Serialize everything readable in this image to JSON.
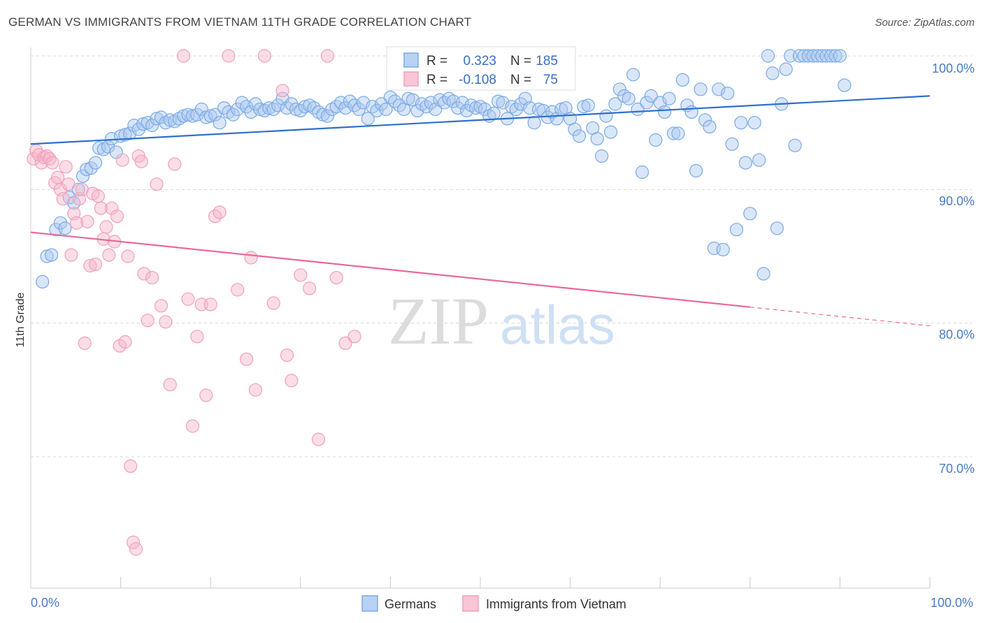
{
  "title": "GERMAN VS IMMIGRANTS FROM VIETNAM 11TH GRADE CORRELATION CHART",
  "source": "Source: ZipAtlas.com",
  "watermark": {
    "zip": "ZIP",
    "atlas": "atlas"
  },
  "legend_box": {
    "r_label": "R =",
    "n_label": "N =",
    "rows": [
      {
        "r": "0.323",
        "n": "185",
        "color": "#7aaae8"
      },
      {
        "r": "-0.108",
        "n": "75",
        "color": "#f2a0b8"
      }
    ]
  },
  "chart_data": {
    "type": "scatter",
    "ylabel": "11th Grade",
    "xlim": [
      0,
      100
    ],
    "ylim": [
      60.5,
      101.5
    ],
    "x_tick_labels": [
      "0.0%",
      "100.0%"
    ],
    "y_ticks": [
      70,
      80,
      90,
      100
    ],
    "y_tick_labels": [
      "70.0%",
      "80.0%",
      "90.0%",
      "100.0%"
    ],
    "grid": "horizontal-dashed",
    "legend_placement": "bottom-center",
    "series": [
      {
        "name": "Germans",
        "color": "#7aaae8",
        "line_color": "#2f6fcc",
        "trend": {
          "x": [
            0,
            100
          ],
          "y": [
            93.4,
            97.0
          ]
        },
        "points": [
          [
            1.3,
            83.1
          ],
          [
            1.8,
            85.0
          ],
          [
            2.3,
            85.1
          ],
          [
            2.8,
            87.0
          ],
          [
            3.3,
            87.5
          ],
          [
            3.8,
            87.1
          ],
          [
            4.3,
            89.4
          ],
          [
            4.8,
            89.0
          ],
          [
            5.3,
            90.0
          ],
          [
            5.8,
            91.0
          ],
          [
            6.2,
            91.5
          ],
          [
            6.7,
            91.6
          ],
          [
            7.2,
            92.0
          ],
          [
            7.6,
            93.1
          ],
          [
            8.1,
            93.0
          ],
          [
            8.6,
            93.2
          ],
          [
            9.0,
            93.8
          ],
          [
            9.5,
            92.8
          ],
          [
            10.0,
            94.0
          ],
          [
            10.5,
            94.1
          ],
          [
            11.0,
            94.2
          ],
          [
            11.5,
            94.8
          ],
          [
            12.0,
            94.5
          ],
          [
            12.5,
            94.9
          ],
          [
            13.0,
            95.0
          ],
          [
            13.5,
            94.8
          ],
          [
            14.0,
            95.3
          ],
          [
            14.5,
            95.4
          ],
          [
            15.0,
            95.0
          ],
          [
            15.5,
            95.2
          ],
          [
            16.0,
            95.1
          ],
          [
            16.5,
            95.3
          ],
          [
            17.0,
            95.5
          ],
          [
            17.5,
            95.6
          ],
          [
            18.0,
            95.5
          ],
          [
            18.5,
            95.6
          ],
          [
            19.0,
            96.0
          ],
          [
            19.5,
            95.4
          ],
          [
            20.0,
            95.5
          ],
          [
            20.5,
            95.6
          ],
          [
            21.0,
            95.0
          ],
          [
            21.5,
            96.1
          ],
          [
            22.0,
            95.8
          ],
          [
            22.5,
            95.6
          ],
          [
            23.0,
            96.0
          ],
          [
            23.5,
            96.5
          ],
          [
            24.0,
            96.2
          ],
          [
            24.5,
            95.8
          ],
          [
            25.0,
            96.4
          ],
          [
            25.5,
            96.0
          ],
          [
            26.0,
            95.9
          ],
          [
            26.5,
            96.1
          ],
          [
            27.0,
            96.0
          ],
          [
            27.5,
            96.3
          ],
          [
            28.0,
            96.8
          ],
          [
            28.5,
            96.1
          ],
          [
            29.0,
            96.4
          ],
          [
            29.5,
            96.0
          ],
          [
            30.0,
            95.9
          ],
          [
            30.5,
            96.2
          ],
          [
            31.0,
            96.3
          ],
          [
            31.5,
            96.1
          ],
          [
            32.0,
            95.8
          ],
          [
            32.5,
            95.6
          ],
          [
            33.0,
            95.5
          ],
          [
            33.5,
            96.0
          ],
          [
            34.0,
            96.2
          ],
          [
            34.5,
            96.5
          ],
          [
            35.0,
            96.1
          ],
          [
            35.5,
            96.6
          ],
          [
            36.0,
            96.3
          ],
          [
            36.5,
            96.0
          ],
          [
            37.0,
            96.5
          ],
          [
            37.5,
            95.3
          ],
          [
            38.0,
            96.2
          ],
          [
            38.5,
            95.9
          ],
          [
            39.0,
            96.4
          ],
          [
            39.5,
            96.0
          ],
          [
            40.0,
            96.9
          ],
          [
            40.5,
            96.6
          ],
          [
            41.0,
            96.3
          ],
          [
            41.5,
            96.0
          ],
          [
            42.0,
            96.8
          ],
          [
            42.5,
            96.7
          ],
          [
            43.0,
            95.9
          ],
          [
            43.5,
            96.4
          ],
          [
            44.0,
            96.2
          ],
          [
            44.5,
            96.5
          ],
          [
            45.0,
            96.0
          ],
          [
            45.5,
            96.7
          ],
          [
            46.0,
            96.5
          ],
          [
            46.5,
            96.8
          ],
          [
            47.0,
            96.6
          ],
          [
            47.5,
            96.1
          ],
          [
            48.0,
            96.5
          ],
          [
            48.5,
            95.9
          ],
          [
            49.0,
            96.3
          ],
          [
            49.5,
            96.1
          ],
          [
            50.0,
            96.2
          ],
          [
            50.5,
            96.0
          ],
          [
            51.0,
            95.5
          ],
          [
            51.5,
            95.7
          ],
          [
            52.0,
            96.6
          ],
          [
            52.5,
            96.5
          ],
          [
            53.0,
            95.3
          ],
          [
            53.5,
            96.2
          ],
          [
            54.0,
            96.0
          ],
          [
            54.5,
            96.4
          ],
          [
            55.0,
            96.8
          ],
          [
            55.5,
            96.1
          ],
          [
            56.0,
            95.0
          ],
          [
            56.5,
            96.0
          ],
          [
            57.0,
            95.9
          ],
          [
            57.5,
            95.4
          ],
          [
            58.0,
            95.8
          ],
          [
            58.5,
            95.3
          ],
          [
            59.0,
            96.0
          ],
          [
            59.5,
            96.1
          ],
          [
            60.0,
            95.3
          ],
          [
            60.5,
            94.5
          ],
          [
            61.0,
            94.0
          ],
          [
            61.5,
            96.2
          ],
          [
            62.0,
            96.3
          ],
          [
            62.5,
            94.6
          ],
          [
            63.0,
            93.8
          ],
          [
            63.5,
            92.5
          ],
          [
            64.0,
            95.5
          ],
          [
            64.5,
            94.3
          ],
          [
            65.0,
            96.4
          ],
          [
            65.5,
            97.5
          ],
          [
            66.0,
            97.0
          ],
          [
            66.5,
            96.8
          ],
          [
            67.0,
            98.6
          ],
          [
            67.5,
            96.0
          ],
          [
            68.0,
            91.3
          ],
          [
            68.5,
            96.5
          ],
          [
            69.0,
            97.0
          ],
          [
            69.5,
            93.7
          ],
          [
            70.0,
            96.5
          ],
          [
            70.5,
            95.8
          ],
          [
            71.0,
            96.8
          ],
          [
            71.5,
            94.2
          ],
          [
            72.0,
            94.2
          ],
          [
            72.5,
            98.2
          ],
          [
            73.0,
            96.3
          ],
          [
            73.5,
            95.8
          ],
          [
            74.0,
            91.4
          ],
          [
            74.5,
            97.5
          ],
          [
            75.0,
            95.2
          ],
          [
            75.5,
            94.7
          ],
          [
            76.0,
            85.6
          ],
          [
            76.5,
            97.5
          ],
          [
            77.0,
            85.5
          ],
          [
            77.5,
            97.2
          ],
          [
            78.0,
            93.4
          ],
          [
            78.5,
            87.0
          ],
          [
            79.0,
            95.0
          ],
          [
            79.5,
            92.0
          ],
          [
            80.0,
            88.2
          ],
          [
            80.5,
            95.0
          ],
          [
            81.0,
            92.2
          ],
          [
            81.5,
            83.7
          ],
          [
            82.0,
            100.0
          ],
          [
            82.5,
            98.7
          ],
          [
            83.0,
            87.1
          ],
          [
            83.5,
            96.4
          ],
          [
            84.0,
            99.0
          ],
          [
            84.5,
            100.0
          ],
          [
            85.0,
            93.3
          ],
          [
            85.5,
            100.0
          ],
          [
            86.0,
            100.0
          ],
          [
            86.5,
            100.0
          ],
          [
            87.0,
            100.0
          ],
          [
            87.5,
            100.0
          ],
          [
            88.0,
            100.0
          ],
          [
            88.5,
            100.0
          ],
          [
            89.0,
            100.0
          ],
          [
            89.5,
            100.0
          ],
          [
            90.0,
            100.0
          ],
          [
            90.5,
            97.8
          ]
        ]
      },
      {
        "name": "Immigrants from Vietnam",
        "color": "#f2a0b8",
        "line_color": "#e8689a",
        "trend": {
          "x": [
            0,
            100
          ],
          "y": [
            86.8,
            79.8
          ]
        },
        "trend_solid_until": 80,
        "points": [
          [
            0.3,
            92.3
          ],
          [
            0.6,
            92.9
          ],
          [
            0.9,
            92.6
          ],
          [
            1.2,
            92.0
          ],
          [
            1.5,
            92.4
          ],
          [
            1.8,
            92.5
          ],
          [
            2.1,
            92.3
          ],
          [
            2.4,
            92.0
          ],
          [
            2.7,
            90.5
          ],
          [
            3.0,
            90.9
          ],
          [
            3.3,
            90.0
          ],
          [
            3.6,
            89.3
          ],
          [
            3.9,
            91.7
          ],
          [
            4.2,
            90.4
          ],
          [
            4.5,
            85.1
          ],
          [
            4.8,
            88.2
          ],
          [
            5.1,
            87.5
          ],
          [
            5.4,
            89.3
          ],
          [
            5.7,
            90.0
          ],
          [
            6.0,
            78.5
          ],
          [
            6.3,
            87.6
          ],
          [
            6.6,
            84.3
          ],
          [
            6.9,
            89.7
          ],
          [
            7.2,
            84.4
          ],
          [
            7.5,
            89.5
          ],
          [
            7.8,
            88.6
          ],
          [
            8.1,
            86.3
          ],
          [
            8.4,
            87.2
          ],
          [
            8.7,
            85.1
          ],
          [
            9.0,
            88.6
          ],
          [
            9.3,
            86.1
          ],
          [
            9.6,
            88.0
          ],
          [
            9.9,
            78.3
          ],
          [
            10.2,
            92.2
          ],
          [
            10.5,
            78.6
          ],
          [
            10.8,
            85.0
          ],
          [
            11.1,
            69.3
          ],
          [
            11.4,
            63.6
          ],
          [
            11.7,
            63.1
          ],
          [
            12.0,
            92.5
          ],
          [
            12.3,
            92.1
          ],
          [
            12.6,
            83.7
          ],
          [
            13.0,
            80.2
          ],
          [
            13.5,
            83.4
          ],
          [
            14.0,
            90.4
          ],
          [
            14.5,
            81.3
          ],
          [
            15.0,
            80.1
          ],
          [
            15.5,
            75.4
          ],
          [
            16.0,
            91.9
          ],
          [
            17.0,
            100.0
          ],
          [
            17.5,
            81.8
          ],
          [
            18.0,
            72.3
          ],
          [
            18.5,
            79.0
          ],
          [
            19.0,
            81.4
          ],
          [
            19.5,
            74.6
          ],
          [
            20.0,
            81.4
          ],
          [
            20.5,
            88.0
          ],
          [
            21.0,
            88.3
          ],
          [
            22.0,
            100.0
          ],
          [
            23.0,
            82.5
          ],
          [
            24.0,
            77.3
          ],
          [
            24.5,
            84.9
          ],
          [
            25.0,
            75.0
          ],
          [
            26.0,
            100.0
          ],
          [
            27.0,
            81.5
          ],
          [
            28.0,
            97.4
          ],
          [
            28.5,
            77.6
          ],
          [
            29.0,
            75.7
          ],
          [
            30.0,
            83.6
          ],
          [
            31.0,
            82.6
          ],
          [
            32.0,
            71.3
          ],
          [
            33.0,
            100.0
          ],
          [
            34.0,
            83.4
          ],
          [
            35.0,
            78.5
          ],
          [
            36.0,
            79.0
          ]
        ]
      }
    ]
  }
}
